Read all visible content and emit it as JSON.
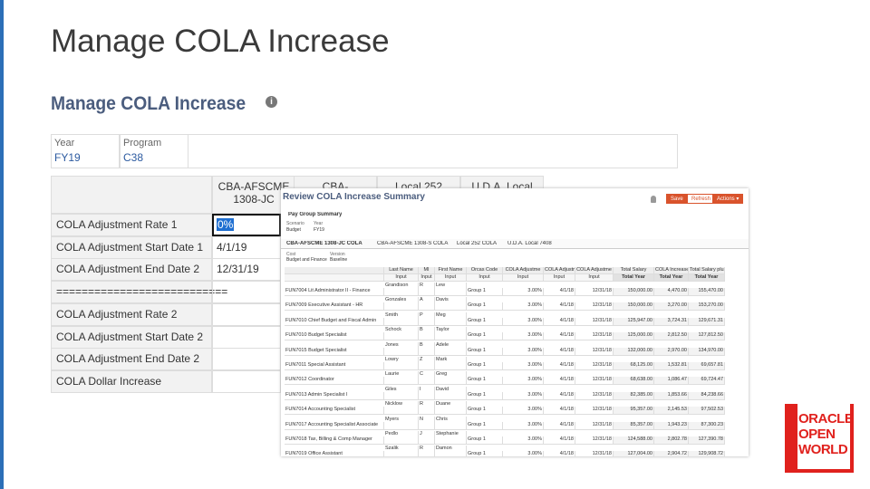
{
  "slide": {
    "title": "Manage COLA Increase"
  },
  "back": {
    "heading": "Manage COLA Increase",
    "info_icon": "i",
    "filters": [
      {
        "label": "Year",
        "value": "FY19"
      },
      {
        "label": "Program",
        "value": "C38"
      }
    ],
    "columns": [
      "CBA-AFSCME 1308-JC",
      "CBA-",
      "Local 252",
      "U.D.A. Local"
    ],
    "rows": [
      {
        "label": "COLA Adjustment Rate 1",
        "value": "0%"
      },
      {
        "label": "COLA Adjustment Start Date 1",
        "value": "4/1/19"
      },
      {
        "label": "COLA Adjustment End Date 2",
        "value": "12/31/19"
      },
      {
        "label": "===========================",
        "value": null
      },
      {
        "label": "COLA Adjustment Rate 2",
        "value": null
      },
      {
        "label": "COLA Adjustment Start Date 2",
        "value": null
      },
      {
        "label": "COLA Adjustment End Date 2",
        "value": null
      },
      {
        "label": "COLA Dollar Increase",
        "value": null
      }
    ]
  },
  "overlay": {
    "title": "Review COLA Increase Summary",
    "buttons": [
      "Save",
      "Refresh",
      "Actions ▾"
    ],
    "section": "Pay Group Summary",
    "pov": [
      {
        "label": "Scenario",
        "value": "Budget"
      },
      {
        "label": "Year",
        "value": "FY19"
      }
    ],
    "tabs": [
      "CBA-AFSCME 1308-JC COLA",
      "CBA-AFSCME 1308-S COLA",
      "Local 252 COLA",
      "U.D.A. Local 7408"
    ],
    "pov2": [
      {
        "label": "Cost",
        "value": "Budget and Finance"
      },
      {
        "label": "Version",
        "value": "Baseline"
      }
    ],
    "headers": [
      [
        "",
        ""
      ],
      [
        "Last Name",
        "Input"
      ],
      [
        "MI",
        "Input"
      ],
      [
        "First Name",
        "Input"
      ],
      [
        "Orcas Code",
        "Input"
      ],
      [
        "COLA Adjustme",
        "Input"
      ],
      [
        "COLA Adjustme",
        "Input"
      ],
      [
        "COLA Adjustme",
        "Input"
      ],
      [
        "Total Salary",
        "Total Year"
      ],
      [
        "COLA Increase",
        "Total Year"
      ],
      [
        "Total Salary plus",
        "Total Year"
      ]
    ],
    "rows": [
      [
        "FUN7004 Lit Administrator II - Finance",
        "Grandison",
        "R",
        "Lew",
        "Group 1",
        "3.00%",
        "4/1/18",
        "12/31/18",
        "150,000.00",
        "4,470.00",
        "155,470.00"
      ],
      [
        "FUN7009 Executive Assistant - HR",
        "Gonzales",
        "A",
        "Davis",
        "Group 1",
        "3.00%",
        "4/1/18",
        "12/31/18",
        "150,000.00",
        "3,270.00",
        "153,270.00"
      ],
      [
        "FUN7010 Chief Budget and Fiscal Admin",
        "Smith",
        "P",
        "Meg",
        "Group 1",
        "3.00%",
        "4/1/18",
        "12/31/18",
        "125,947.00",
        "3,724.31",
        "129,671.31"
      ],
      [
        "FUN7010 Budget Specialist",
        "Schock",
        "B",
        "Taylor",
        "Group 1",
        "3.00%",
        "4/1/18",
        "12/31/18",
        "125,000.00",
        "2,812.50",
        "127,812.50"
      ],
      [
        "FUN7015 Budget Specialist",
        "Jones",
        "B",
        "Adele",
        "Group 1",
        "3.00%",
        "4/1/18",
        "12/31/18",
        "132,000.00",
        "2,970.00",
        "134,970.00"
      ],
      [
        "FUN7011 Special Assistant",
        "Lowry",
        "Z",
        "Mark",
        "Group 1",
        "3.00%",
        "4/1/18",
        "12/31/18",
        "68,125.00",
        "1,532.81",
        "69,657.81"
      ],
      [
        "FUN7012 Coordinator",
        "Laurie",
        "C",
        "Greg",
        "Group 1",
        "3.00%",
        "4/1/18",
        "12/31/18",
        "68,638.00",
        "1,086.47",
        "69,724.47"
      ],
      [
        "FUN7013 Admin Specialist I",
        "Giles",
        "I",
        "David",
        "Group 1",
        "3.00%",
        "4/1/18",
        "12/31/18",
        "82,385.00",
        "1,853.66",
        "84,238.66"
      ],
      [
        "FUN7014 Accounting Specialist",
        "Nicklow",
        "R",
        "Duane",
        "Group 1",
        "3.00%",
        "4/1/18",
        "12/31/18",
        "95,357.00",
        "2,145.53",
        "97,502.53"
      ],
      [
        "FUN7017 Accounting Specialist Associate",
        "Myers",
        "N",
        "Chris",
        "Group 1",
        "3.00%",
        "4/1/18",
        "12/31/18",
        "85,357.00",
        "1,943.23",
        "87,300.23"
      ],
      [
        "FUN7018 Tax, Billing & Comp Manager",
        "Pedlo",
        "J",
        "Stephanie",
        "Group 1",
        "3.00%",
        "4/1/18",
        "12/31/18",
        "124,588.00",
        "2,802.78",
        "127,390.78"
      ],
      [
        "FUN7019 Office Assistant",
        "Szalik",
        "R",
        "Damon",
        "Group 1",
        "3.00%",
        "4/1/18",
        "12/31/18",
        "127,004.00",
        "2,904.72",
        "129,908.72"
      ]
    ]
  },
  "logo": {
    "lines": [
      "ORACLE",
      "OPEN",
      "WORLD"
    ]
  }
}
